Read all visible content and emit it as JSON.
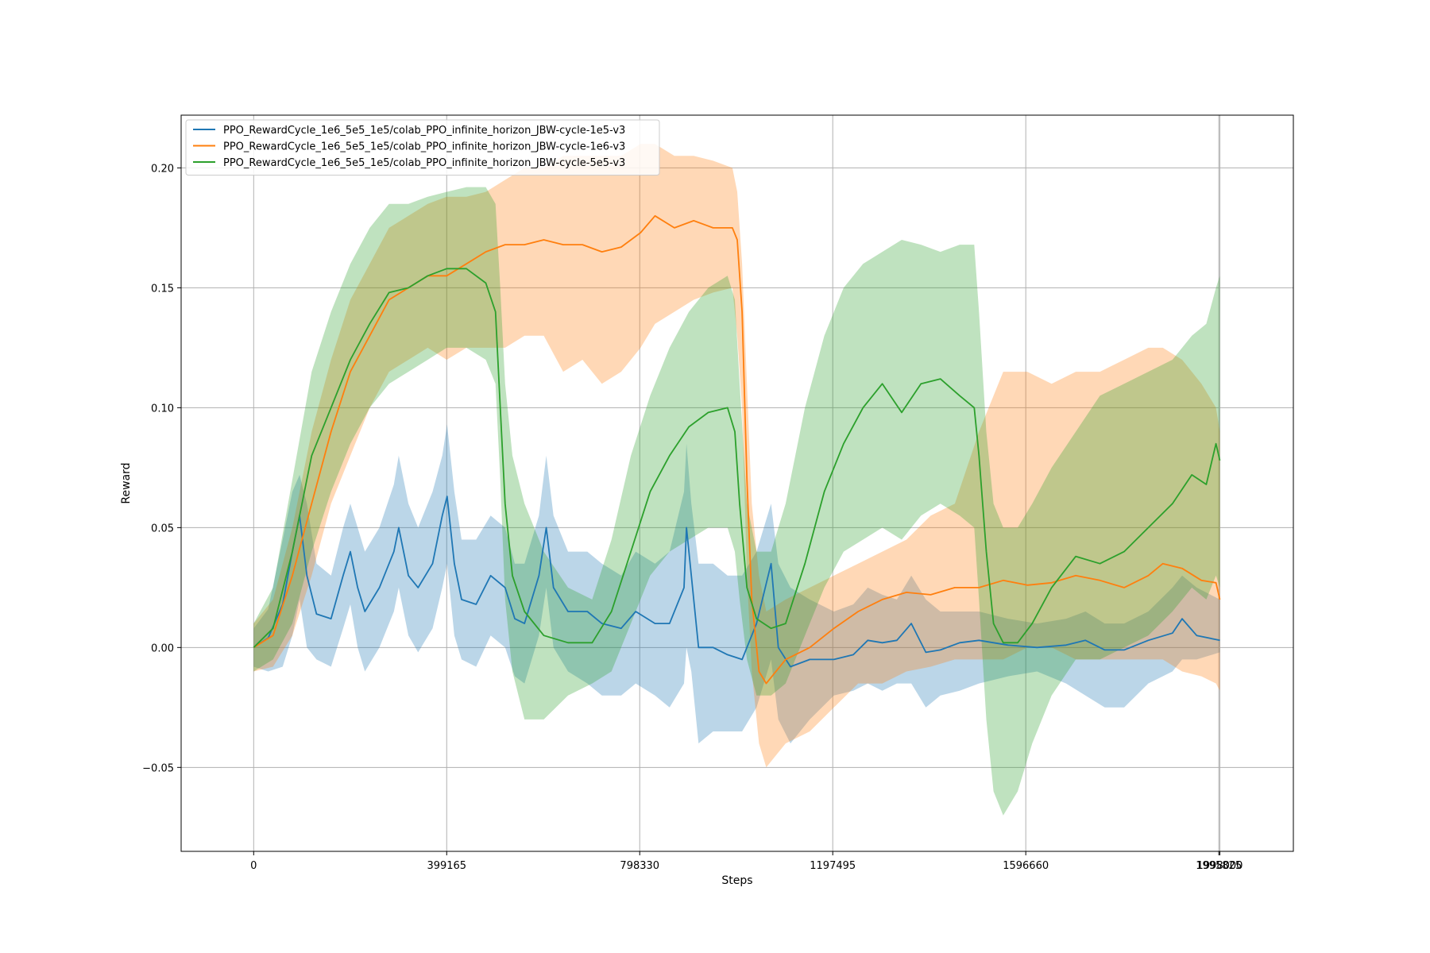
{
  "chart_data": {
    "type": "line",
    "title": "",
    "xlabel": "Steps",
    "ylabel": "Reward",
    "xlim": [
      -150000,
      2150000
    ],
    "ylim": [
      -0.085,
      0.222
    ],
    "x_ticks": [
      0,
      399165,
      798330,
      1197495,
      1596660,
      1995825
    ],
    "x_tick_labels": [
      "0",
      "399165",
      "798330",
      "1197495",
      "1596660",
      "1995825"
    ],
    "extra_x_tick": 1998000,
    "extra_x_tick_label": "1998000",
    "y_ticks": [
      -0.05,
      0.0,
      0.05,
      0.1,
      0.15,
      0.2
    ],
    "y_tick_labels": [
      "−0.05",
      "0.00",
      "0.05",
      "0.10",
      "0.15",
      "0.20"
    ],
    "grid": true,
    "legend_position": "top-left",
    "series": [
      {
        "name": "PPO_RewardCycle_1e6_5e5_1e5/colab_PPO_infinite_horizon_JBW-cycle-1e5-v3",
        "color": "#1f77b4",
        "fill_opacity": 0.3,
        "points": [
          [
            0,
            0.0,
            -0.008,
            0.008
          ],
          [
            30000,
            0.004,
            -0.01,
            0.016
          ],
          [
            60000,
            0.018,
            -0.008,
            0.045
          ],
          [
            80000,
            0.04,
            0.005,
            0.065
          ],
          [
            95000,
            0.055,
            0.02,
            0.072
          ],
          [
            110000,
            0.03,
            0.0,
            0.06
          ],
          [
            130000,
            0.014,
            -0.005,
            0.035
          ],
          [
            160000,
            0.012,
            -0.008,
            0.03
          ],
          [
            185000,
            0.03,
            0.008,
            0.05
          ],
          [
            200000,
            0.04,
            0.018,
            0.06
          ],
          [
            215000,
            0.025,
            0.0,
            0.05
          ],
          [
            230000,
            0.015,
            -0.01,
            0.04
          ],
          [
            260000,
            0.025,
            0.0,
            0.05
          ],
          [
            290000,
            0.04,
            0.015,
            0.068
          ],
          [
            300000,
            0.05,
            0.025,
            0.08
          ],
          [
            320000,
            0.03,
            0.005,
            0.06
          ],
          [
            340000,
            0.025,
            -0.002,
            0.05
          ],
          [
            370000,
            0.035,
            0.008,
            0.065
          ],
          [
            390000,
            0.055,
            0.025,
            0.08
          ],
          [
            400000,
            0.063,
            0.035,
            0.093
          ],
          [
            415000,
            0.035,
            0.005,
            0.065
          ],
          [
            430000,
            0.02,
            -0.005,
            0.045
          ],
          [
            460000,
            0.018,
            -0.008,
            0.045
          ],
          [
            490000,
            0.03,
            0.005,
            0.055
          ],
          [
            520000,
            0.025,
            0.0,
            0.05
          ],
          [
            540000,
            0.012,
            -0.012,
            0.035
          ],
          [
            560000,
            0.01,
            -0.015,
            0.035
          ],
          [
            590000,
            0.03,
            0.005,
            0.055
          ],
          [
            605000,
            0.05,
            0.025,
            0.08
          ],
          [
            620000,
            0.025,
            0.0,
            0.055
          ],
          [
            650000,
            0.015,
            -0.01,
            0.04
          ],
          [
            690000,
            0.015,
            -0.015,
            0.04
          ],
          [
            720000,
            0.01,
            -0.02,
            0.035
          ],
          [
            760000,
            0.008,
            -0.02,
            0.03
          ],
          [
            790000,
            0.015,
            -0.015,
            0.04
          ],
          [
            830000,
            0.01,
            -0.02,
            0.035
          ],
          [
            860000,
            0.01,
            -0.025,
            0.04
          ],
          [
            890000,
            0.025,
            -0.015,
            0.065
          ],
          [
            895000,
            0.05,
            0.0,
            0.085
          ],
          [
            905000,
            0.03,
            -0.01,
            0.06
          ],
          [
            920000,
            0.0,
            -0.04,
            0.035
          ],
          [
            950000,
            0.0,
            -0.035,
            0.035
          ],
          [
            980000,
            -0.003,
            -0.035,
            0.03
          ],
          [
            1010000,
            -0.005,
            -0.035,
            0.03
          ],
          [
            1040000,
            0.01,
            -0.025,
            0.04
          ],
          [
            1070000,
            0.035,
            -0.005,
            0.06
          ],
          [
            1085000,
            0.0,
            -0.03,
            0.035
          ],
          [
            1110000,
            -0.008,
            -0.04,
            0.025
          ],
          [
            1150000,
            -0.005,
            -0.03,
            0.02
          ],
          [
            1200000,
            -0.005,
            -0.02,
            0.015
          ],
          [
            1240000,
            -0.003,
            -0.018,
            0.018
          ],
          [
            1270000,
            0.003,
            -0.015,
            0.025
          ],
          [
            1300000,
            0.002,
            -0.018,
            0.022
          ],
          [
            1330000,
            0.003,
            -0.015,
            0.02
          ],
          [
            1360000,
            0.01,
            -0.015,
            0.03
          ],
          [
            1390000,
            -0.002,
            -0.025,
            0.02
          ],
          [
            1420000,
            -0.001,
            -0.02,
            0.015
          ],
          [
            1460000,
            0.002,
            -0.018,
            0.015
          ],
          [
            1500000,
            0.003,
            -0.015,
            0.015
          ],
          [
            1560000,
            0.001,
            -0.012,
            0.012
          ],
          [
            1620000,
            0.0,
            -0.01,
            0.01
          ],
          [
            1680000,
            0.001,
            -0.015,
            0.012
          ],
          [
            1720000,
            0.003,
            -0.02,
            0.015
          ],
          [
            1760000,
            -0.001,
            -0.025,
            0.01
          ],
          [
            1800000,
            -0.001,
            -0.025,
            0.01
          ],
          [
            1850000,
            0.003,
            -0.015,
            0.015
          ],
          [
            1900000,
            0.006,
            -0.01,
            0.025
          ],
          [
            1920000,
            0.012,
            -0.005,
            0.03
          ],
          [
            1950000,
            0.005,
            -0.005,
            0.025
          ],
          [
            1998000,
            0.003,
            -0.002,
            0.02
          ]
        ]
      },
      {
        "name": "PPO_RewardCycle_1e6_5e5_1e5/colab_PPO_infinite_horizon_JBW-cycle-1e6-v3",
        "color": "#ff7f0e",
        "fill_opacity": 0.3,
        "points": [
          [
            0,
            0.0,
            -0.01,
            0.01
          ],
          [
            40000,
            0.005,
            -0.008,
            0.02
          ],
          [
            80000,
            0.03,
            0.005,
            0.05
          ],
          [
            120000,
            0.06,
            0.03,
            0.09
          ],
          [
            160000,
            0.09,
            0.06,
            0.12
          ],
          [
            200000,
            0.115,
            0.08,
            0.145
          ],
          [
            240000,
            0.13,
            0.1,
            0.16
          ],
          [
            280000,
            0.145,
            0.115,
            0.175
          ],
          [
            320000,
            0.15,
            0.12,
            0.18
          ],
          [
            360000,
            0.155,
            0.125,
            0.185
          ],
          [
            399165,
            0.155,
            0.12,
            0.188
          ],
          [
            440000,
            0.16,
            0.125,
            0.188
          ],
          [
            480000,
            0.165,
            0.125,
            0.19
          ],
          [
            520000,
            0.168,
            0.125,
            0.195
          ],
          [
            560000,
            0.168,
            0.13,
            0.2
          ],
          [
            600000,
            0.17,
            0.13,
            0.2
          ],
          [
            640000,
            0.168,
            0.115,
            0.205
          ],
          [
            680000,
            0.168,
            0.12,
            0.205
          ],
          [
            720000,
            0.165,
            0.11,
            0.205
          ],
          [
            760000,
            0.167,
            0.115,
            0.205
          ],
          [
            800000,
            0.173,
            0.125,
            0.21
          ],
          [
            830000,
            0.18,
            0.135,
            0.21
          ],
          [
            870000,
            0.175,
            0.14,
            0.205
          ],
          [
            910000,
            0.178,
            0.145,
            0.205
          ],
          [
            950000,
            0.175,
            0.148,
            0.203
          ],
          [
            990000,
            0.175,
            0.15,
            0.2
          ],
          [
            1000000,
            0.17,
            0.13,
            0.19
          ],
          [
            1010000,
            0.14,
            0.1,
            0.16
          ],
          [
            1020000,
            0.07,
            0.03,
            0.11
          ],
          [
            1030000,
            0.02,
            -0.01,
            0.06
          ],
          [
            1045000,
            -0.01,
            -0.04,
            0.03
          ],
          [
            1060000,
            -0.015,
            -0.05,
            0.015
          ],
          [
            1100000,
            -0.005,
            -0.04,
            0.02
          ],
          [
            1150000,
            0.0,
            -0.035,
            0.025
          ],
          [
            1200000,
            0.008,
            -0.025,
            0.03
          ],
          [
            1250000,
            0.015,
            -0.015,
            0.035
          ],
          [
            1300000,
            0.02,
            -0.015,
            0.04
          ],
          [
            1350000,
            0.023,
            -0.01,
            0.045
          ],
          [
            1400000,
            0.022,
            -0.008,
            0.055
          ],
          [
            1450000,
            0.025,
            -0.005,
            0.06
          ],
          [
            1500000,
            0.025,
            -0.005,
            0.09
          ],
          [
            1550000,
            0.028,
            -0.005,
            0.115
          ],
          [
            1600000,
            0.026,
            0.0,
            0.115
          ],
          [
            1650000,
            0.027,
            0.0,
            0.11
          ],
          [
            1700000,
            0.03,
            -0.005,
            0.115
          ],
          [
            1750000,
            0.028,
            -0.005,
            0.115
          ],
          [
            1800000,
            0.025,
            -0.005,
            0.12
          ],
          [
            1850000,
            0.03,
            -0.005,
            0.125
          ],
          [
            1880000,
            0.035,
            -0.005,
            0.125
          ],
          [
            1920000,
            0.033,
            -0.01,
            0.12
          ],
          [
            1960000,
            0.028,
            -0.012,
            0.11
          ],
          [
            1990000,
            0.027,
            -0.015,
            0.1
          ],
          [
            1998000,
            0.02,
            -0.018,
            0.09
          ]
        ]
      },
      {
        "name": "PPO_RewardCycle_1e6_5e5_1e5/colab_PPO_infinite_horizon_JBW-cycle-5e5-v3",
        "color": "#2ca02c",
        "fill_opacity": 0.3,
        "points": [
          [
            0,
            0.0,
            -0.01,
            0.01
          ],
          [
            40000,
            0.008,
            -0.005,
            0.025
          ],
          [
            80000,
            0.04,
            0.01,
            0.07
          ],
          [
            120000,
            0.08,
            0.04,
            0.115
          ],
          [
            160000,
            0.1,
            0.065,
            0.14
          ],
          [
            200000,
            0.12,
            0.085,
            0.16
          ],
          [
            240000,
            0.135,
            0.1,
            0.175
          ],
          [
            280000,
            0.148,
            0.11,
            0.185
          ],
          [
            320000,
            0.15,
            0.115,
            0.185
          ],
          [
            360000,
            0.155,
            0.12,
            0.188
          ],
          [
            399165,
            0.158,
            0.125,
            0.19
          ],
          [
            440000,
            0.158,
            0.125,
            0.192
          ],
          [
            480000,
            0.152,
            0.12,
            0.192
          ],
          [
            500000,
            0.14,
            0.11,
            0.185
          ],
          [
            510000,
            0.1,
            0.07,
            0.15
          ],
          [
            520000,
            0.06,
            0.02,
            0.11
          ],
          [
            535000,
            0.03,
            -0.01,
            0.08
          ],
          [
            560000,
            0.015,
            -0.03,
            0.06
          ],
          [
            600000,
            0.005,
            -0.03,
            0.04
          ],
          [
            650000,
            0.002,
            -0.02,
            0.025
          ],
          [
            700000,
            0.002,
            -0.015,
            0.02
          ],
          [
            740000,
            0.015,
            -0.01,
            0.045
          ],
          [
            780000,
            0.04,
            0.01,
            0.08
          ],
          [
            820000,
            0.065,
            0.03,
            0.105
          ],
          [
            860000,
            0.08,
            0.04,
            0.125
          ],
          [
            900000,
            0.092,
            0.045,
            0.14
          ],
          [
            940000,
            0.098,
            0.05,
            0.15
          ],
          [
            980000,
            0.1,
            0.05,
            0.155
          ],
          [
            995000,
            0.09,
            0.04,
            0.145
          ],
          [
            1005000,
            0.06,
            0.02,
            0.11
          ],
          [
            1020000,
            0.025,
            -0.005,
            0.06
          ],
          [
            1040000,
            0.012,
            -0.02,
            0.04
          ],
          [
            1070000,
            0.008,
            -0.02,
            0.04
          ],
          [
            1100000,
            0.01,
            -0.015,
            0.06
          ],
          [
            1140000,
            0.035,
            0.005,
            0.1
          ],
          [
            1180000,
            0.065,
            0.025,
            0.13
          ],
          [
            1220000,
            0.085,
            0.04,
            0.15
          ],
          [
            1260000,
            0.1,
            0.045,
            0.16
          ],
          [
            1300000,
            0.11,
            0.05,
            0.165
          ],
          [
            1340000,
            0.098,
            0.045,
            0.17
          ],
          [
            1380000,
            0.11,
            0.055,
            0.168
          ],
          [
            1420000,
            0.112,
            0.06,
            0.165
          ],
          [
            1460000,
            0.105,
            0.055,
            0.168
          ],
          [
            1490000,
            0.1,
            0.05,
            0.168
          ],
          [
            1500000,
            0.08,
            0.02,
            0.14
          ],
          [
            1515000,
            0.04,
            -0.03,
            0.09
          ],
          [
            1530000,
            0.01,
            -0.06,
            0.06
          ],
          [
            1550000,
            0.002,
            -0.07,
            0.05
          ],
          [
            1580000,
            0.002,
            -0.06,
            0.05
          ],
          [
            1610000,
            0.01,
            -0.04,
            0.06
          ],
          [
            1650000,
            0.025,
            -0.02,
            0.075
          ],
          [
            1700000,
            0.038,
            -0.005,
            0.09
          ],
          [
            1750000,
            0.035,
            -0.005,
            0.105
          ],
          [
            1800000,
            0.04,
            0.0,
            0.11
          ],
          [
            1850000,
            0.05,
            0.005,
            0.115
          ],
          [
            1900000,
            0.06,
            0.015,
            0.12
          ],
          [
            1940000,
            0.072,
            0.025,
            0.13
          ],
          [
            1970000,
            0.068,
            0.02,
            0.135
          ],
          [
            1990000,
            0.085,
            0.03,
            0.15
          ],
          [
            1998000,
            0.078,
            0.025,
            0.155
          ]
        ]
      }
    ]
  }
}
